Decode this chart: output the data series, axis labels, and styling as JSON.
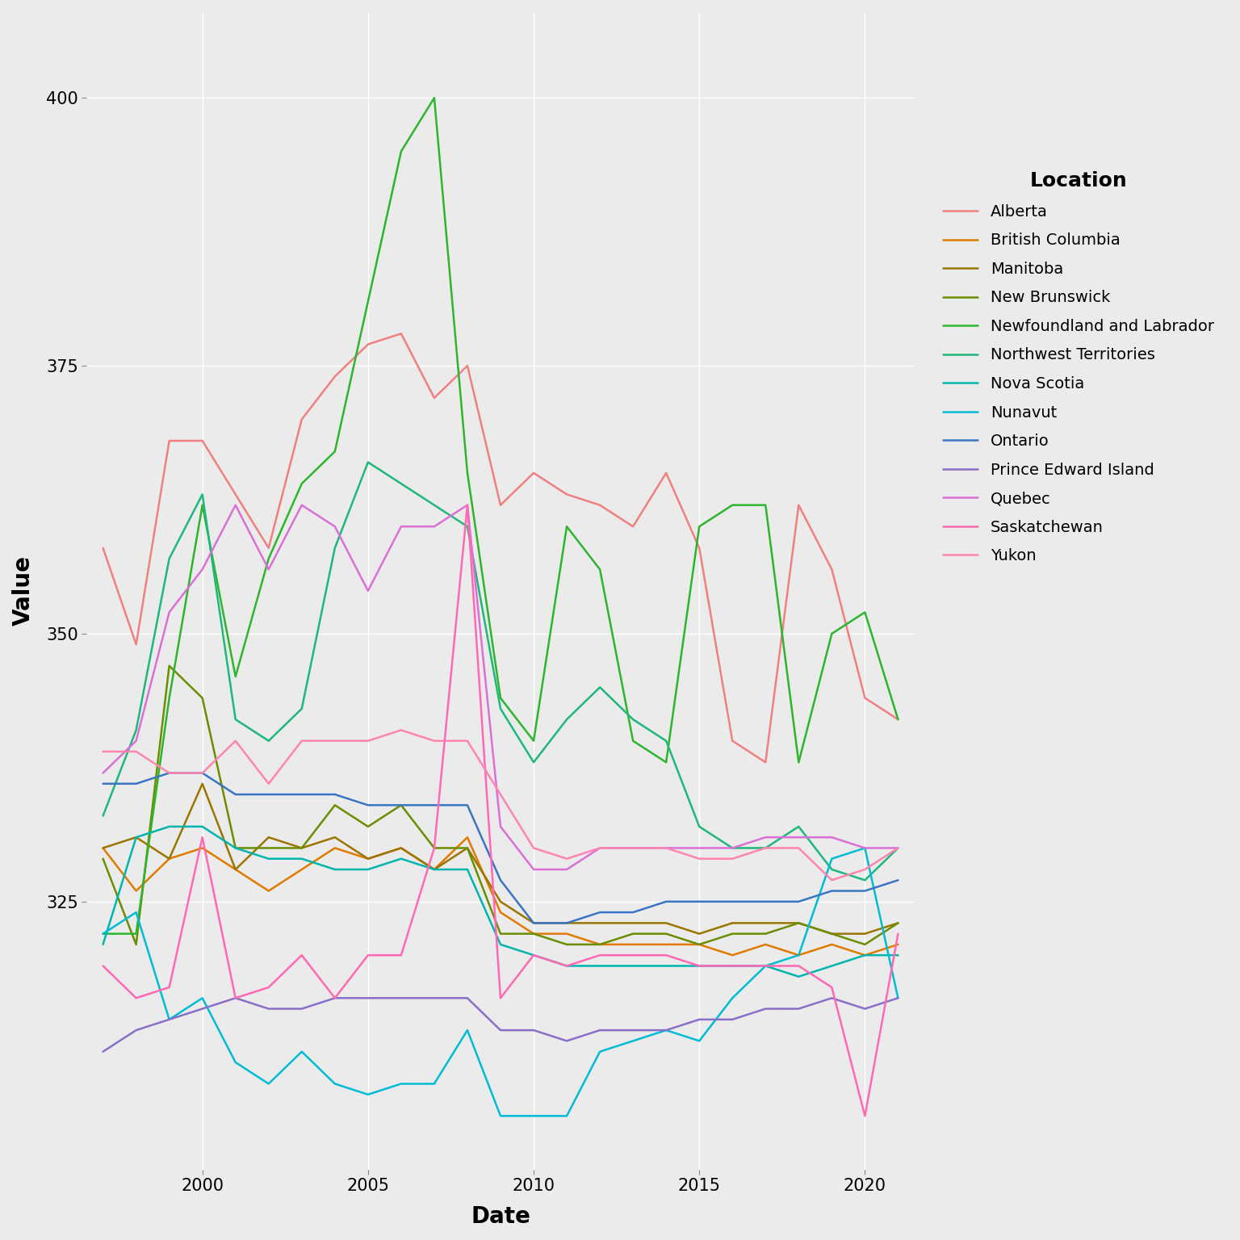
{
  "title": "",
  "xlabel": "Date",
  "ylabel": "Value",
  "legend_title": "Location",
  "background_color": "#EBEBEB",
  "grid_color": "white",
  "series": {
    "Alberta": {
      "color": "#F08080",
      "years": [
        1997,
        1998,
        1999,
        2000,
        2001,
        2002,
        2003,
        2004,
        2005,
        2006,
        2007,
        2008,
        2009,
        2010,
        2011,
        2012,
        2013,
        2014,
        2015,
        2016,
        2017,
        2018,
        2019,
        2020,
        2021
      ],
      "values": [
        358,
        349,
        368,
        368,
        363,
        358,
        370,
        374,
        377,
        378,
        372,
        375,
        362,
        365,
        363,
        362,
        360,
        365,
        358,
        340,
        338,
        362,
        356,
        344,
        342
      ]
    },
    "British Columbia": {
      "color": "#E07B00",
      "years": [
        1997,
        1998,
        1999,
        2000,
        2001,
        2002,
        2003,
        2004,
        2005,
        2006,
        2007,
        2008,
        2009,
        2010,
        2011,
        2012,
        2013,
        2014,
        2015,
        2016,
        2017,
        2018,
        2019,
        2020,
        2021
      ],
      "values": [
        330,
        326,
        329,
        330,
        328,
        326,
        328,
        330,
        329,
        330,
        328,
        331,
        324,
        322,
        322,
        321,
        321,
        321,
        321,
        320,
        321,
        320,
        321,
        320,
        321
      ]
    },
    "Manitoba": {
      "color": "#9B7500",
      "years": [
        1997,
        1998,
        1999,
        2000,
        2001,
        2002,
        2003,
        2004,
        2005,
        2006,
        2007,
        2008,
        2009,
        2010,
        2011,
        2012,
        2013,
        2014,
        2015,
        2016,
        2017,
        2018,
        2019,
        2020,
        2021
      ],
      "values": [
        330,
        331,
        329,
        336,
        328,
        331,
        330,
        331,
        329,
        330,
        328,
        330,
        325,
        323,
        323,
        323,
        323,
        323,
        322,
        323,
        323,
        323,
        322,
        322,
        323
      ]
    },
    "New Brunswick": {
      "color": "#6B8E00",
      "years": [
        1997,
        1998,
        1999,
        2000,
        2001,
        2002,
        2003,
        2004,
        2005,
        2006,
        2007,
        2008,
        2009,
        2010,
        2011,
        2012,
        2013,
        2014,
        2015,
        2016,
        2017,
        2018,
        2019,
        2020,
        2021
      ],
      "values": [
        329,
        321,
        347,
        344,
        330,
        330,
        330,
        334,
        332,
        334,
        330,
        330,
        322,
        322,
        321,
        321,
        322,
        322,
        321,
        322,
        322,
        323,
        322,
        321,
        323
      ]
    },
    "Newfoundland and Labrador": {
      "color": "#2DB52D",
      "years": [
        1997,
        1998,
        1999,
        2000,
        2001,
        2002,
        2003,
        2004,
        2005,
        2006,
        2007,
        2008,
        2009,
        2010,
        2011,
        2012,
        2013,
        2014,
        2015,
        2016,
        2017,
        2018,
        2019,
        2020,
        2021
      ],
      "values": [
        322,
        322,
        344,
        362,
        346,
        357,
        364,
        367,
        381,
        395,
        400,
        365,
        344,
        340,
        360,
        356,
        340,
        338,
        360,
        362,
        362,
        338,
        350,
        352,
        342
      ]
    },
    "Northwest Territories": {
      "color": "#1DB87A",
      "years": [
        1997,
        1998,
        1999,
        2000,
        2001,
        2002,
        2003,
        2004,
        2005,
        2006,
        2007,
        2008,
        2009,
        2010,
        2011,
        2012,
        2013,
        2014,
        2015,
        2016,
        2017,
        2018,
        2019,
        2020,
        2021
      ],
      "values": [
        333,
        341,
        357,
        363,
        342,
        340,
        343,
        358,
        366,
        364,
        362,
        360,
        343,
        338,
        342,
        345,
        342,
        340,
        332,
        330,
        330,
        332,
        328,
        327,
        330
      ]
    },
    "Nova Scotia": {
      "color": "#00B5AD",
      "years": [
        1997,
        1998,
        1999,
        2000,
        2001,
        2002,
        2003,
        2004,
        2005,
        2006,
        2007,
        2008,
        2009,
        2010,
        2011,
        2012,
        2013,
        2014,
        2015,
        2016,
        2017,
        2018,
        2019,
        2020,
        2021
      ],
      "values": [
        321,
        331,
        332,
        332,
        330,
        329,
        329,
        328,
        328,
        329,
        328,
        328,
        321,
        320,
        319,
        319,
        319,
        319,
        319,
        319,
        319,
        318,
        319,
        320,
        320
      ]
    },
    "Nunavut": {
      "color": "#00BCD4",
      "years": [
        1997,
        1998,
        1999,
        2000,
        2001,
        2002,
        2003,
        2004,
        2005,
        2006,
        2007,
        2008,
        2009,
        2010,
        2011,
        2012,
        2013,
        2014,
        2015,
        2016,
        2017,
        2018,
        2019,
        2020,
        2021
      ],
      "values": [
        322,
        324,
        314,
        316,
        310,
        308,
        311,
        308,
        307,
        308,
        308,
        313,
        305,
        305,
        305,
        311,
        312,
        313,
        312,
        316,
        319,
        320,
        329,
        330,
        316
      ]
    },
    "Ontario": {
      "color": "#3A75C4",
      "years": [
        1997,
        1998,
        1999,
        2000,
        2001,
        2002,
        2003,
        2004,
        2005,
        2006,
        2007,
        2008,
        2009,
        2010,
        2011,
        2012,
        2013,
        2014,
        2015,
        2016,
        2017,
        2018,
        2019,
        2020,
        2021
      ],
      "values": [
        336,
        336,
        337,
        337,
        335,
        335,
        335,
        335,
        334,
        334,
        334,
        334,
        327,
        323,
        323,
        324,
        324,
        325,
        325,
        325,
        325,
        325,
        326,
        326,
        327
      ]
    },
    "Prince Edward Island": {
      "color": "#8A6FC9",
      "years": [
        1997,
        1998,
        1999,
        2000,
        2001,
        2002,
        2003,
        2004,
        2005,
        2006,
        2007,
        2008,
        2009,
        2010,
        2011,
        2012,
        2013,
        2014,
        2015,
        2016,
        2017,
        2018,
        2019,
        2020,
        2021
      ],
      "values": [
        311,
        313,
        314,
        315,
        316,
        315,
        315,
        316,
        316,
        316,
        316,
        316,
        313,
        313,
        312,
        313,
        313,
        313,
        314,
        314,
        315,
        315,
        316,
        315,
        316
      ]
    },
    "Quebec": {
      "color": "#DA70D6",
      "years": [
        1997,
        1998,
        1999,
        2000,
        2001,
        2002,
        2003,
        2004,
        2005,
        2006,
        2007,
        2008,
        2009,
        2010,
        2011,
        2012,
        2013,
        2014,
        2015,
        2016,
        2017,
        2018,
        2019,
        2020,
        2021
      ],
      "values": [
        337,
        340,
        352,
        356,
        362,
        356,
        362,
        360,
        354,
        360,
        360,
        362,
        332,
        328,
        328,
        330,
        330,
        330,
        330,
        330,
        331,
        331,
        331,
        330,
        330
      ]
    },
    "Saskatchewan": {
      "color": "#FF69B4",
      "years": [
        1997,
        1998,
        1999,
        2000,
        2001,
        2002,
        2003,
        2004,
        2005,
        2006,
        2007,
        2008,
        2009,
        2010,
        2011,
        2012,
        2013,
        2014,
        2015,
        2016,
        2017,
        2018,
        2019,
        2020,
        2021
      ],
      "values": [
        319,
        316,
        317,
        331,
        316,
        317,
        320,
        316,
        320,
        320,
        330,
        362,
        316,
        320,
        319,
        320,
        320,
        320,
        319,
        319,
        319,
        319,
        317,
        305,
        322
      ]
    },
    "Yukon": {
      "color": "#FF85B0",
      "years": [
        1997,
        1998,
        1999,
        2000,
        2001,
        2002,
        2003,
        2004,
        2005,
        2006,
        2007,
        2008,
        2009,
        2010,
        2011,
        2012,
        2013,
        2014,
        2015,
        2016,
        2017,
        2018,
        2019,
        2020,
        2021
      ],
      "values": [
        339,
        339,
        337,
        337,
        340,
        336,
        340,
        340,
        340,
        341,
        340,
        340,
        335,
        330,
        329,
        330,
        330,
        330,
        329,
        329,
        330,
        330,
        327,
        328,
        330
      ]
    }
  },
  "ylim": [
    300,
    408
  ],
  "yticks": [
    325,
    350,
    375,
    400
  ],
  "xticks": [
    2000,
    2005,
    2010,
    2015,
    2020
  ]
}
